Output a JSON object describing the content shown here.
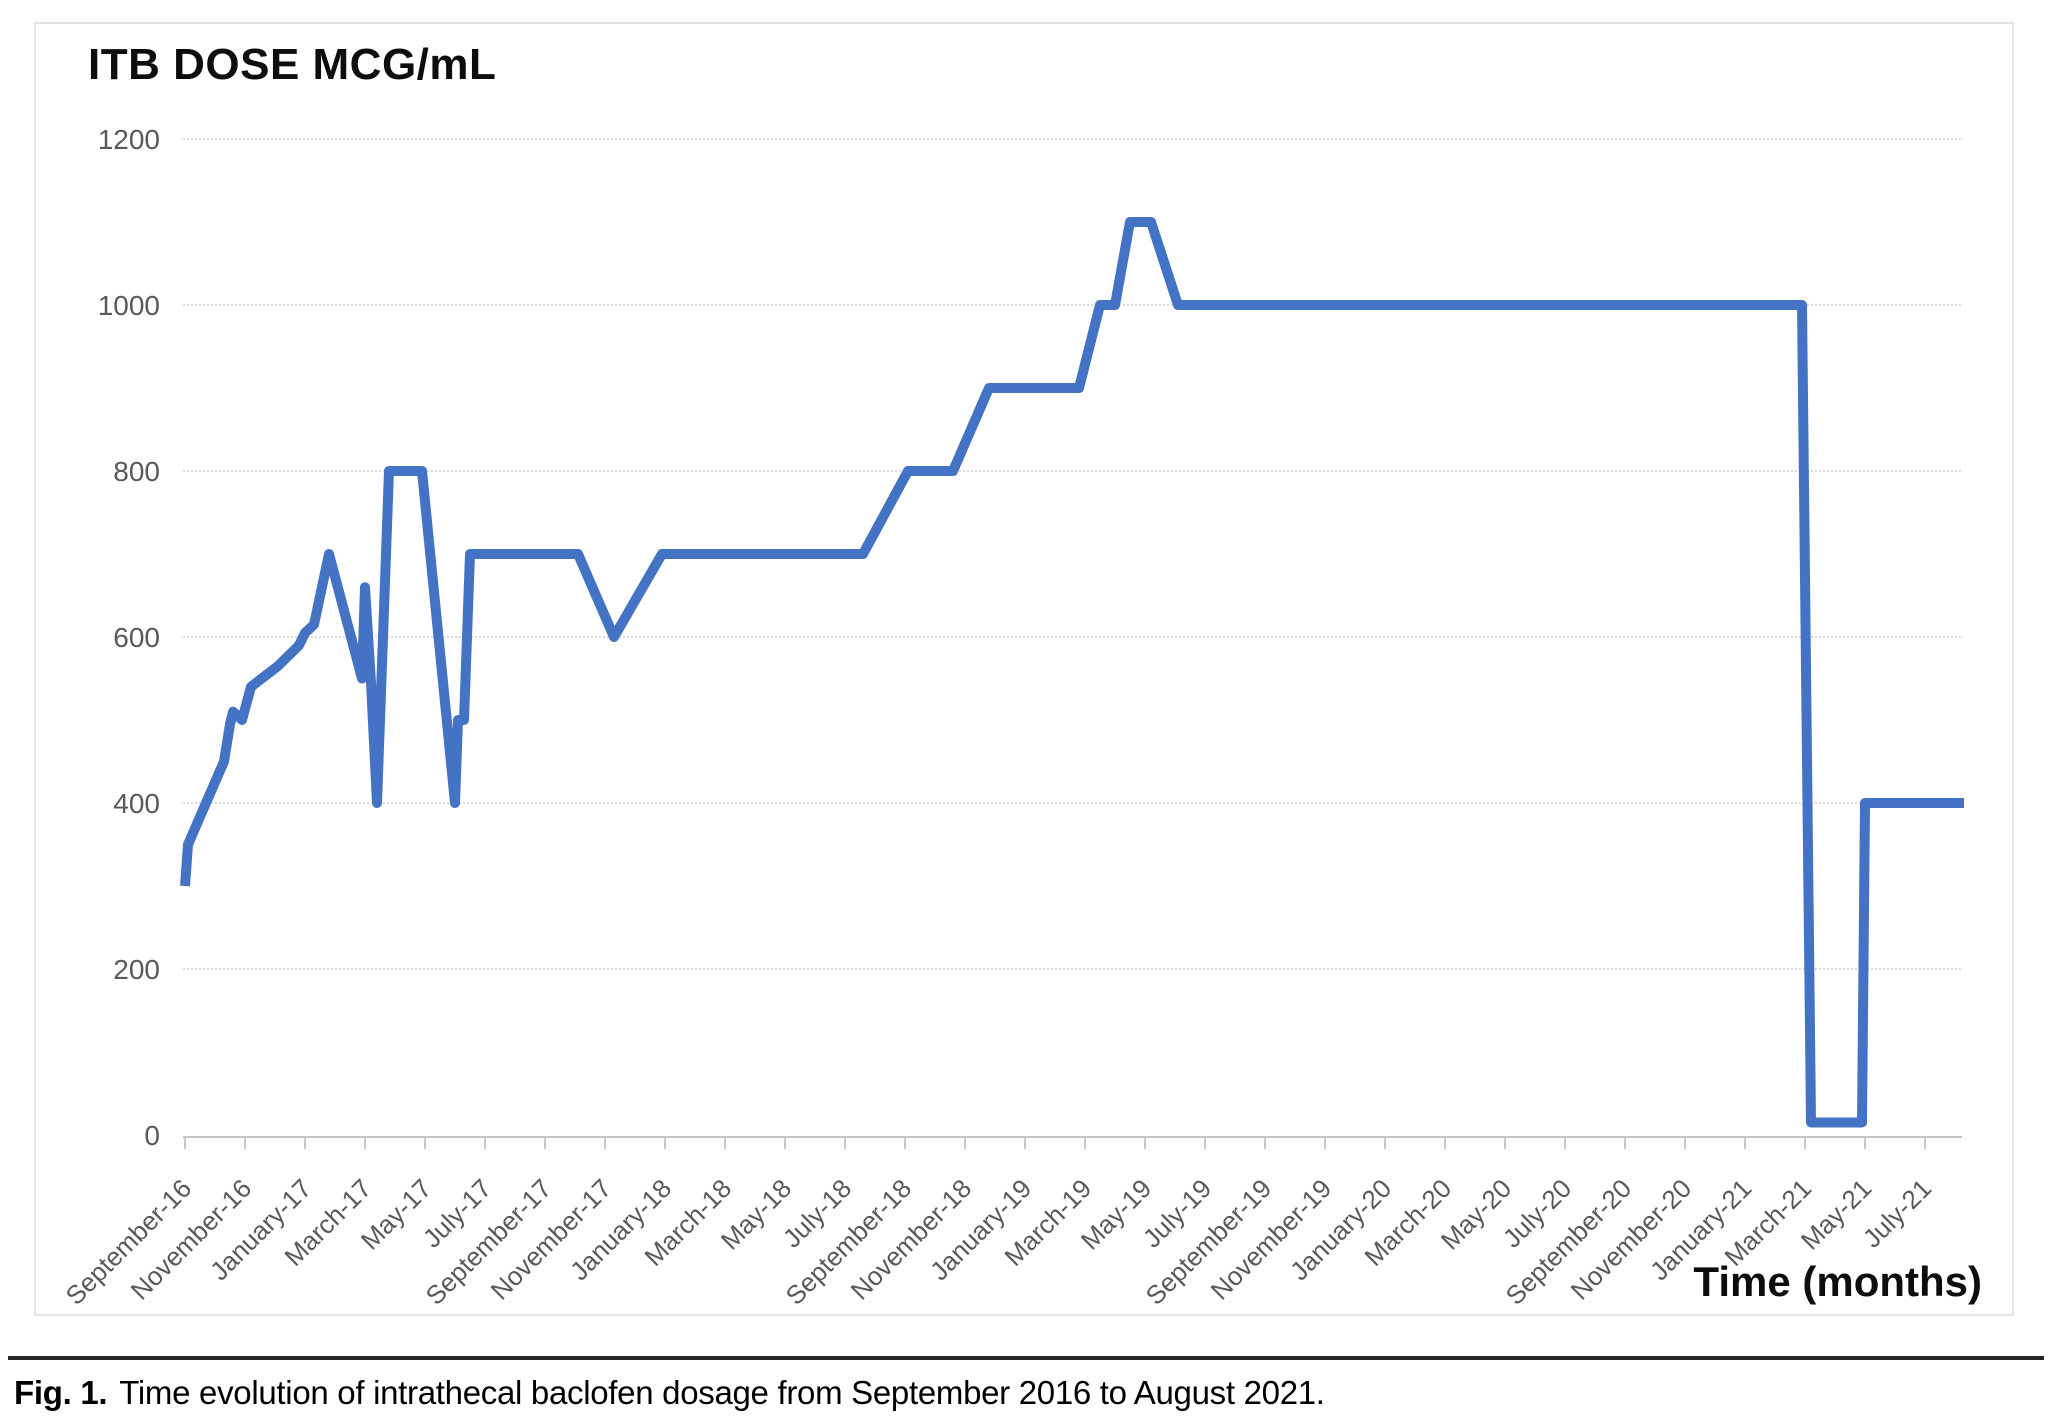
{
  "chart": {
    "title": "ITB DOSE MCG/mL",
    "x_axis_title": "Time (months)"
  },
  "caption": {
    "label": "Fig. 1.",
    "text": "Time evolution of intrathecal baclofen dosage from September 2016 to August 2021."
  },
  "colors": {
    "line": "#4472C4",
    "gridline": "#d9d9d9",
    "axis": "#c6c6c6",
    "tick_label": "#595959",
    "title_text": "#0d0d0d"
  },
  "chart_data": {
    "type": "line",
    "title": "ITB DOSE MCG/mL",
    "xlabel": "Time (months)",
    "ylabel": "ITB dose (mcg/mL)",
    "ylim": [
      0,
      1200
    ],
    "y_ticks": [
      0,
      200,
      400,
      600,
      800,
      1000,
      1200
    ],
    "x_tick_labels": [
      "September-16",
      "November-16",
      "January-17",
      "March-17",
      "May-17",
      "July-17",
      "September-17",
      "November-17",
      "January-18",
      "March-18",
      "May-18",
      "July-18",
      "September-18",
      "November-18",
      "January-19",
      "March-19",
      "May-19",
      "July-19",
      "September-19",
      "November-19",
      "January-20",
      "March-20",
      "May-20",
      "July-20",
      "September-20",
      "November-20",
      "January-21",
      "March-21",
      "May-21",
      "July-21"
    ],
    "x_unit": "months since September 2016 (0 = September-16, one x-tick every 2 months)",
    "grid": true,
    "legend": false,
    "line_color": "#4472C4",
    "points": [
      [
        0.0,
        300
      ],
      [
        0.1,
        350
      ],
      [
        0.7,
        400
      ],
      [
        1.3,
        450
      ],
      [
        1.5,
        495
      ],
      [
        1.6,
        510
      ],
      [
        1.9,
        500
      ],
      [
        2.2,
        540
      ],
      [
        3.1,
        565
      ],
      [
        3.8,
        590
      ],
      [
        4.0,
        605
      ],
      [
        4.3,
        615
      ],
      [
        4.8,
        700
      ],
      [
        5.9,
        550
      ],
      [
        6.0,
        660
      ],
      [
        6.2,
        545
      ],
      [
        6.4,
        400
      ],
      [
        6.8,
        800
      ],
      [
        7.9,
        800
      ],
      [
        9.0,
        400
      ],
      [
        9.1,
        500
      ],
      [
        9.3,
        500
      ],
      [
        9.5,
        700
      ],
      [
        13.1,
        700
      ],
      [
        14.3,
        600
      ],
      [
        15.9,
        700
      ],
      [
        22.6,
        700
      ],
      [
        24.1,
        800
      ],
      [
        25.6,
        800
      ],
      [
        26.8,
        900
      ],
      [
        29.8,
        900
      ],
      [
        30.5,
        1000
      ],
      [
        31.0,
        1000
      ],
      [
        31.5,
        1100
      ],
      [
        32.2,
        1100
      ],
      [
        33.1,
        1000
      ],
      [
        53.9,
        1000
      ],
      [
        54.2,
        15
      ],
      [
        55.9,
        15
      ],
      [
        56.0,
        400
      ],
      [
        59.3,
        400
      ]
    ]
  }
}
